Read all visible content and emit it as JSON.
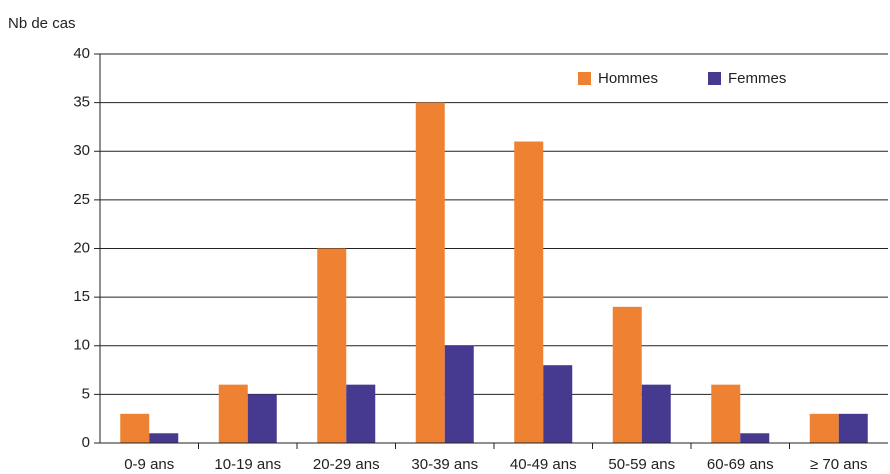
{
  "chart_data": {
    "type": "bar",
    "y_label": "Nb de cas",
    "categories": [
      "0-9 ans",
      "10-19 ans",
      "20-29 ans",
      "30-39 ans",
      "40-49 ans",
      "50-59 ans",
      "60-69 ans",
      "≥ 70 ans"
    ],
    "series": [
      {
        "name": "Hommes",
        "color": "#ef8232",
        "values": [
          3,
          6,
          20,
          35,
          31,
          14,
          6,
          3
        ]
      },
      {
        "name": "Femmes",
        "color": "#453a8f",
        "values": [
          1,
          5,
          6,
          10,
          8,
          6,
          1,
          3
        ]
      }
    ],
    "ylim": [
      0,
      40
    ],
    "yticks": [
      0,
      5,
      10,
      15,
      20,
      25,
      30,
      35,
      40
    ],
    "grid": true,
    "legend": "top-right"
  }
}
